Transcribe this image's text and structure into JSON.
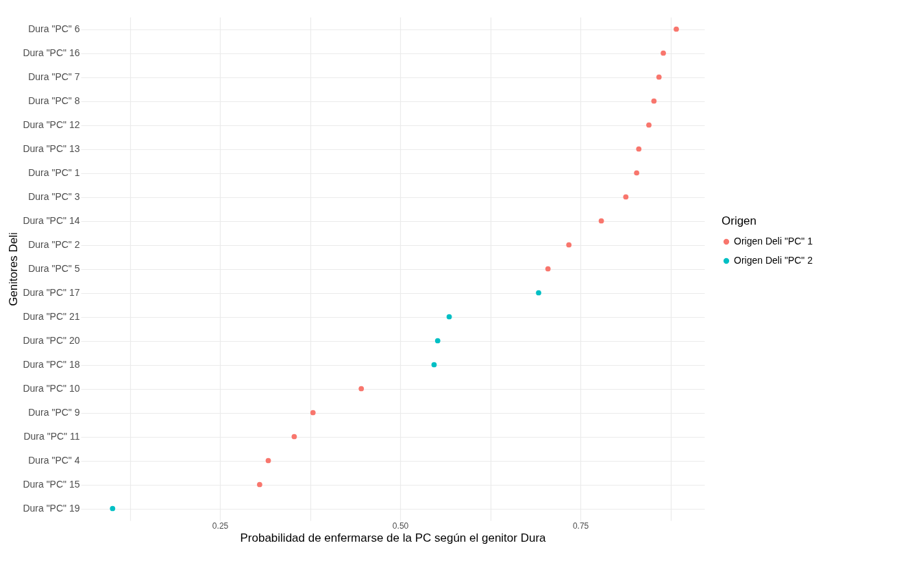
{
  "chart_data": {
    "type": "scatter",
    "orientation": "horizontal",
    "xlabel": "Probabilidad de enfermarse de la PC según el genitor Dura",
    "ylabel": "Genitores Deli",
    "legend_title": "Origen",
    "legend": "right",
    "grid": true,
    "marker": "circle",
    "categories": [
      "Dura \"PC\" 6",
      "Dura \"PC\" 16",
      "Dura \"PC\" 7",
      "Dura \"PC\" 8",
      "Dura \"PC\" 12",
      "Dura \"PC\" 13",
      "Dura \"PC\" 1",
      "Dura \"PC\" 3",
      "Dura \"PC\" 14",
      "Dura \"PC\" 2",
      "Dura \"PC\" 5",
      "Dura \"PC\" 17",
      "Dura \"PC\" 21",
      "Dura \"PC\" 20",
      "Dura \"PC\" 18",
      "Dura \"PC\" 10",
      "Dura \"PC\" 9",
      "Dura \"PC\" 11",
      "Dura \"PC\" 4",
      "Dura \"PC\" 15",
      "Dura \"PC\" 19"
    ],
    "xlim": [
      0.057,
      0.922
    ],
    "xticks": [
      {
        "value": 0.125,
        "label": null
      },
      0.25,
      {
        "value": 0.375,
        "label": null
      },
      {
        "value": 0.5,
        "label": "0.50"
      },
      {
        "value": 0.625,
        "label": null
      },
      0.75,
      {
        "value": 0.875,
        "label": null
      }
    ],
    "series": [
      {
        "name": "Origen Deli \"PC\" 1",
        "color": "#f8766d",
        "values": [
          0.883,
          0.865,
          0.859,
          0.852,
          0.845,
          0.831,
          0.828,
          0.813,
          0.779,
          0.734,
          0.705,
          null,
          null,
          null,
          null,
          0.446,
          0.379,
          0.353,
          0.317,
          0.305,
          null
        ]
      },
      {
        "name": "Origen Deli \"PC\" 2",
        "color": "#00bfc4",
        "values": [
          null,
          null,
          null,
          null,
          null,
          null,
          null,
          null,
          null,
          null,
          null,
          0.692,
          0.568,
          0.552,
          0.547,
          null,
          null,
          null,
          null,
          null,
          0.101
        ]
      }
    ]
  }
}
